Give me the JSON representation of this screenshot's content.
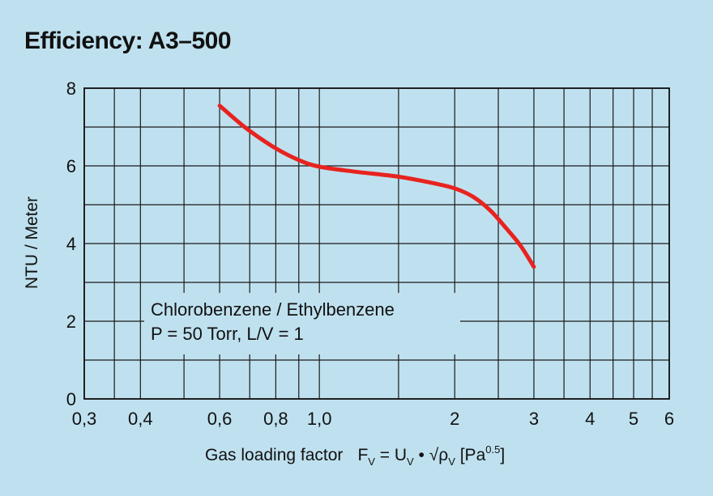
{
  "chart_data": {
    "type": "line",
    "title": "Efficiency: A3–500",
    "xlabel": "Gas loading factor",
    "xlabel_formula": {
      "lead": "F",
      "lead_sub": "V",
      "eq": " = U",
      "u_sub": "V",
      "dot": " • √ρ",
      "rho_sub": "V",
      "unit_open": "  [Pa",
      "unit_sup": "0.5",
      "unit_close": "]"
    },
    "ylabel": "NTU / Meter",
    "x_scale": "log",
    "xlim": [
      0.3,
      6
    ],
    "ylim": [
      0,
      8
    ],
    "grid": true,
    "x_ticks": [
      {
        "value": 0.3,
        "label": "0,3"
      },
      {
        "value": 0.4,
        "label": "0,4"
      },
      {
        "value": 0.6,
        "label": "0,6"
      },
      {
        "value": 0.8,
        "label": "0,8"
      },
      {
        "value": 1.0,
        "label": "1,0"
      },
      {
        "value": 2,
        "label": "2"
      },
      {
        "value": 3,
        "label": "3"
      },
      {
        "value": 4,
        "label": "4"
      },
      {
        "value": 5,
        "label": "5"
      },
      {
        "value": 6,
        "label": "6"
      }
    ],
    "x_gridlines": [
      0.3,
      0.35,
      0.4,
      0.5,
      0.6,
      0.7,
      0.8,
      0.9,
      1.0,
      1.5,
      2,
      2.5,
      3,
      3.5,
      4,
      4.5,
      5,
      5.5,
      6
    ],
    "y_ticks": [
      {
        "value": 0,
        "label": "0"
      },
      {
        "value": 2,
        "label": "2"
      },
      {
        "value": 4,
        "label": "4"
      },
      {
        "value": 6,
        "label": "6"
      },
      {
        "value": 8,
        "label": "8"
      }
    ],
    "y_gridlines": [
      0,
      1,
      2,
      3,
      4,
      5,
      6,
      7,
      8
    ],
    "series": [
      {
        "color": "#e8231f",
        "x": [
          0.6,
          0.65,
          0.7,
          0.8,
          0.9,
          1.0,
          1.2,
          1.5,
          1.8,
          2.0,
          2.2,
          2.4,
          2.6,
          2.8,
          3.0
        ],
        "y": [
          7.55,
          7.2,
          6.9,
          6.45,
          6.15,
          5.98,
          5.85,
          5.72,
          5.55,
          5.42,
          5.2,
          4.85,
          4.4,
          3.95,
          3.4
        ]
      }
    ],
    "annotations": [
      "Chlorobenzene / Ethylbenzene",
      "P = 50 Torr, L/V = 1"
    ]
  }
}
